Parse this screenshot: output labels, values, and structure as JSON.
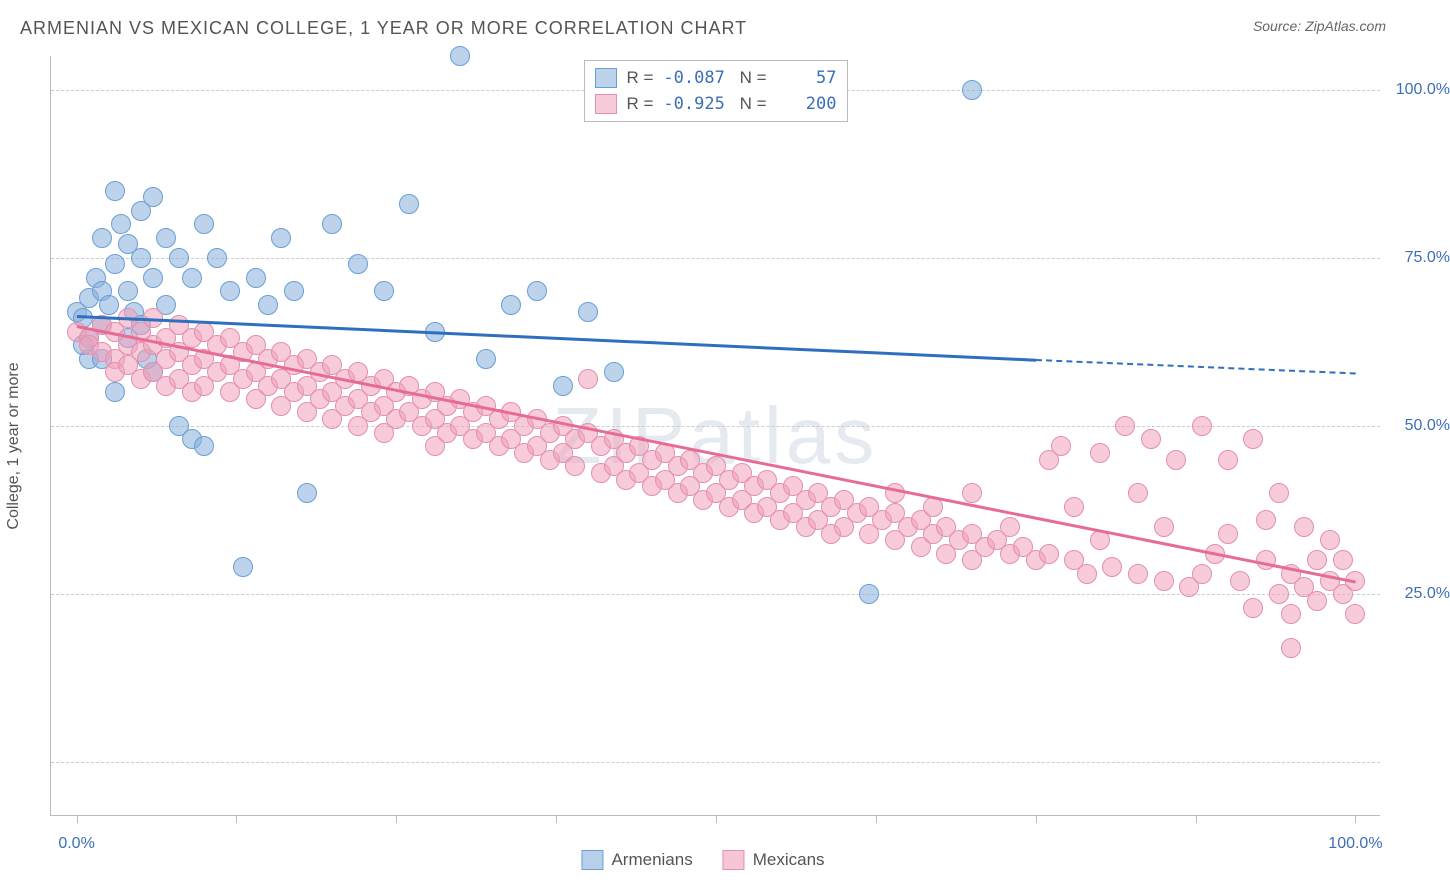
{
  "header": {
    "title": "ARMENIAN VS MEXICAN COLLEGE, 1 YEAR OR MORE CORRELATION CHART",
    "source": "Source: ZipAtlas.com"
  },
  "chart": {
    "type": "scatter",
    "watermark": "ZIPatlas",
    "ylabel": "College, 1 year or more",
    "background_color": "#ffffff",
    "grid_color": "#cccccc",
    "axis_color": "#bbbbbb",
    "yticks": [
      {
        "value": 0,
        "label": ""
      },
      {
        "value": 25,
        "label": "25.0%"
      },
      {
        "value": 50,
        "label": "50.0%"
      },
      {
        "value": 75,
        "label": "75.0%"
      },
      {
        "value": 100,
        "label": "100.0%"
      }
    ],
    "ymin": -8,
    "ymax": 105,
    "xmin": -2,
    "xmax": 102,
    "xticks": [
      {
        "value": 0,
        "label": "0.0%"
      },
      {
        "value": 12.5,
        "label": ""
      },
      {
        "value": 25,
        "label": ""
      },
      {
        "value": 37.5,
        "label": ""
      },
      {
        "value": 50,
        "label": ""
      },
      {
        "value": 62.5,
        "label": ""
      },
      {
        "value": 75,
        "label": ""
      },
      {
        "value": 87.5,
        "label": ""
      },
      {
        "value": 100,
        "label": "100.0%"
      }
    ],
    "series": [
      {
        "name": "Armenians",
        "marker_fill": "rgba(135,175,220,0.55)",
        "marker_stroke": "#6a9fd4",
        "marker_radius": 10,
        "trend_color": "#2e6fc0",
        "trend": {
          "x1": 0,
          "y1": 66.5,
          "x2_solid": 75,
          "y2_solid": 60,
          "x2": 100,
          "y2": 58
        },
        "stats": {
          "R": "-0.087",
          "N": "57"
        },
        "points": [
          [
            0,
            67
          ],
          [
            0.5,
            66
          ],
          [
            1,
            69
          ],
          [
            1,
            63
          ],
          [
            1,
            60
          ],
          [
            1.5,
            72
          ],
          [
            2,
            78
          ],
          [
            2,
            70
          ],
          [
            2,
            65
          ],
          [
            2,
            60
          ],
          [
            2.5,
            68
          ],
          [
            3,
            74
          ],
          [
            3,
            85
          ],
          [
            3.5,
            80
          ],
          [
            4,
            77
          ],
          [
            4,
            70
          ],
          [
            4,
            63
          ],
          [
            4.5,
            67
          ],
          [
            5,
            82
          ],
          [
            5,
            75
          ],
          [
            5,
            65
          ],
          [
            5.5,
            60
          ],
          [
            6,
            84
          ],
          [
            6,
            72
          ],
          [
            7,
            78
          ],
          [
            7,
            68
          ],
          [
            8,
            75
          ],
          [
            8,
            50
          ],
          [
            9,
            72
          ],
          [
            9,
            48
          ],
          [
            10,
            80
          ],
          [
            10,
            47
          ],
          [
            11,
            75
          ],
          [
            12,
            70
          ],
          [
            13,
            29
          ],
          [
            14,
            72
          ],
          [
            15,
            68
          ],
          [
            16,
            78
          ],
          [
            17,
            70
          ],
          [
            18,
            40
          ],
          [
            20,
            80
          ],
          [
            22,
            74
          ],
          [
            24,
            70
          ],
          [
            26,
            83
          ],
          [
            28,
            64
          ],
          [
            30,
            105
          ],
          [
            32,
            60
          ],
          [
            34,
            68
          ],
          [
            36,
            70
          ],
          [
            38,
            56
          ],
          [
            40,
            67
          ],
          [
            42,
            58
          ],
          [
            62,
            25
          ],
          [
            70,
            100
          ],
          [
            3,
            55
          ],
          [
            6,
            58
          ],
          [
            0.5,
            62
          ]
        ]
      },
      {
        "name": "Mexicans",
        "marker_fill": "rgba(240,160,185,0.55)",
        "marker_stroke": "#e48fb0",
        "marker_radius": 10,
        "trend_color": "#e86b95",
        "trend": {
          "x1": 0,
          "y1": 65,
          "x2_solid": 100,
          "y2_solid": 27,
          "x2": 100,
          "y2": 27
        },
        "stats": {
          "R": "-0.925",
          "N": "200"
        },
        "points": [
          [
            0,
            64
          ],
          [
            1,
            63
          ],
          [
            1,
            62
          ],
          [
            2,
            65
          ],
          [
            2,
            61
          ],
          [
            3,
            64
          ],
          [
            3,
            60
          ],
          [
            3,
            58
          ],
          [
            4,
            66
          ],
          [
            4,
            62
          ],
          [
            4,
            59
          ],
          [
            5,
            64
          ],
          [
            5,
            61
          ],
          [
            5,
            57
          ],
          [
            6,
            66
          ],
          [
            6,
            62
          ],
          [
            6,
            58
          ],
          [
            7,
            63
          ],
          [
            7,
            60
          ],
          [
            7,
            56
          ],
          [
            8,
            65
          ],
          [
            8,
            61
          ],
          [
            8,
            57
          ],
          [
            9,
            63
          ],
          [
            9,
            59
          ],
          [
            9,
            55
          ],
          [
            10,
            64
          ],
          [
            10,
            60
          ],
          [
            10,
            56
          ],
          [
            11,
            62
          ],
          [
            11,
            58
          ],
          [
            12,
            63
          ],
          [
            12,
            59
          ],
          [
            12,
            55
          ],
          [
            13,
            61
          ],
          [
            13,
            57
          ],
          [
            14,
            62
          ],
          [
            14,
            58
          ],
          [
            14,
            54
          ],
          [
            15,
            60
          ],
          [
            15,
            56
          ],
          [
            16,
            61
          ],
          [
            16,
            57
          ],
          [
            16,
            53
          ],
          [
            17,
            59
          ],
          [
            17,
            55
          ],
          [
            18,
            60
          ],
          [
            18,
            56
          ],
          [
            18,
            52
          ],
          [
            19,
            58
          ],
          [
            19,
            54
          ],
          [
            20,
            59
          ],
          [
            20,
            55
          ],
          [
            20,
            51
          ],
          [
            21,
            57
          ],
          [
            21,
            53
          ],
          [
            22,
            58
          ],
          [
            22,
            54
          ],
          [
            22,
            50
          ],
          [
            23,
            56
          ],
          [
            23,
            52
          ],
          [
            24,
            57
          ],
          [
            24,
            53
          ],
          [
            24,
            49
          ],
          [
            25,
            55
          ],
          [
            25,
            51
          ],
          [
            26,
            56
          ],
          [
            26,
            52
          ],
          [
            27,
            54
          ],
          [
            27,
            50
          ],
          [
            28,
            55
          ],
          [
            28,
            51
          ],
          [
            28,
            47
          ],
          [
            29,
            53
          ],
          [
            29,
            49
          ],
          [
            30,
            54
          ],
          [
            30,
            50
          ],
          [
            31,
            52
          ],
          [
            31,
            48
          ],
          [
            32,
            53
          ],
          [
            32,
            49
          ],
          [
            33,
            51
          ],
          [
            33,
            47
          ],
          [
            34,
            52
          ],
          [
            34,
            48
          ],
          [
            35,
            50
          ],
          [
            35,
            46
          ],
          [
            36,
            51
          ],
          [
            36,
            47
          ],
          [
            37,
            49
          ],
          [
            37,
            45
          ],
          [
            38,
            50
          ],
          [
            38,
            46
          ],
          [
            39,
            48
          ],
          [
            39,
            44
          ],
          [
            40,
            49
          ],
          [
            40,
            57
          ],
          [
            41,
            47
          ],
          [
            41,
            43
          ],
          [
            42,
            48
          ],
          [
            42,
            44
          ],
          [
            43,
            46
          ],
          [
            43,
            42
          ],
          [
            44,
            47
          ],
          [
            44,
            43
          ],
          [
            45,
            45
          ],
          [
            45,
            41
          ],
          [
            46,
            46
          ],
          [
            46,
            42
          ],
          [
            47,
            44
          ],
          [
            47,
            40
          ],
          [
            48,
            45
          ],
          [
            48,
            41
          ],
          [
            49,
            43
          ],
          [
            49,
            39
          ],
          [
            50,
            44
          ],
          [
            50,
            40
          ],
          [
            51,
            42
          ],
          [
            51,
            38
          ],
          [
            52,
            43
          ],
          [
            52,
            39
          ],
          [
            53,
            41
          ],
          [
            53,
            37
          ],
          [
            54,
            42
          ],
          [
            54,
            38
          ],
          [
            55,
            40
          ],
          [
            55,
            36
          ],
          [
            56,
            41
          ],
          [
            56,
            37
          ],
          [
            57,
            39
          ],
          [
            57,
            35
          ],
          [
            58,
            40
          ],
          [
            58,
            36
          ],
          [
            59,
            38
          ],
          [
            59,
            34
          ],
          [
            60,
            39
          ],
          [
            60,
            35
          ],
          [
            61,
            37
          ],
          [
            62,
            38
          ],
          [
            62,
            34
          ],
          [
            63,
            36
          ],
          [
            64,
            37
          ],
          [
            64,
            33
          ],
          [
            65,
            35
          ],
          [
            66,
            36
          ],
          [
            66,
            32
          ],
          [
            67,
            34
          ],
          [
            68,
            35
          ],
          [
            68,
            31
          ],
          [
            69,
            33
          ],
          [
            70,
            34
          ],
          [
            70,
            30
          ],
          [
            71,
            32
          ],
          [
            72,
            33
          ],
          [
            73,
            31
          ],
          [
            74,
            32
          ],
          [
            75,
            30
          ],
          [
            76,
            31
          ],
          [
            77,
            47
          ],
          [
            78,
            30
          ],
          [
            79,
            28
          ],
          [
            80,
            46
          ],
          [
            81,
            29
          ],
          [
            82,
            50
          ],
          [
            83,
            28
          ],
          [
            84,
            48
          ],
          [
            85,
            27
          ],
          [
            86,
            45
          ],
          [
            87,
            26
          ],
          [
            88,
            50
          ],
          [
            89,
            31
          ],
          [
            90,
            45
          ],
          [
            91,
            27
          ],
          [
            92,
            48
          ],
          [
            92,
            23
          ],
          [
            93,
            30
          ],
          [
            93,
            36
          ],
          [
            94,
            25
          ],
          [
            94,
            40
          ],
          [
            95,
            28
          ],
          [
            95,
            22
          ],
          [
            96,
            35
          ],
          [
            96,
            26
          ],
          [
            97,
            30
          ],
          [
            97,
            24
          ],
          [
            98,
            27
          ],
          [
            98,
            33
          ],
          [
            99,
            25
          ],
          [
            99,
            30
          ],
          [
            100,
            27
          ],
          [
            100,
            22
          ],
          [
            95,
            17
          ],
          [
            90,
            34
          ],
          [
            88,
            28
          ],
          [
            85,
            35
          ],
          [
            83,
            40
          ],
          [
            80,
            33
          ],
          [
            78,
            38
          ],
          [
            76,
            45
          ],
          [
            73,
            35
          ],
          [
            70,
            40
          ],
          [
            67,
            38
          ],
          [
            64,
            40
          ]
        ]
      }
    ]
  },
  "bottom_legend": [
    {
      "label": "Armenians",
      "fill": "rgba(135,175,220,0.6)",
      "stroke": "#6a9fd4"
    },
    {
      "label": "Mexicans",
      "fill": "rgba(240,160,185,0.6)",
      "stroke": "#e48fb0"
    }
  ]
}
